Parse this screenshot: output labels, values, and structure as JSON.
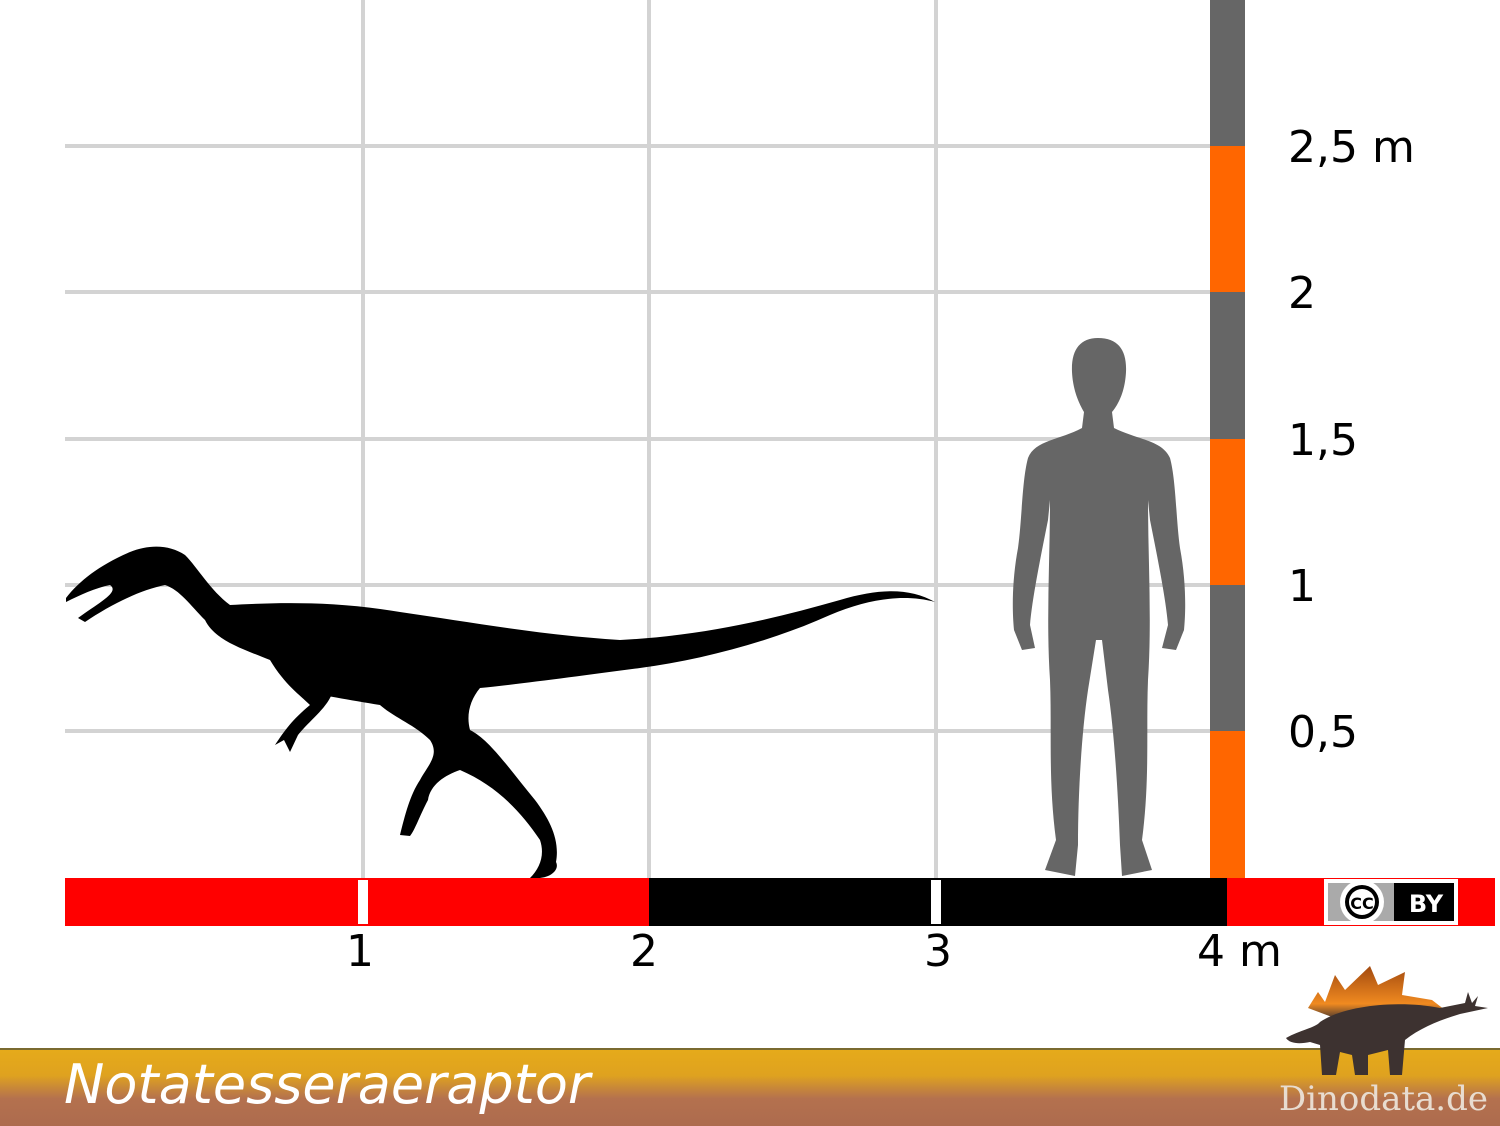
{
  "title": "Notatesseraeraptor",
  "site": "Dinodata.de",
  "license_badge": {
    "cc": "CC",
    "by": "BY"
  },
  "horizontal_scale": {
    "unit": "m",
    "labels": [
      "1",
      "2",
      "3",
      "4 m"
    ],
    "colors": {
      "first_two_m": "#ff0000",
      "next_two_m": "#000000"
    }
  },
  "vertical_scale": {
    "labels": [
      "0,5",
      "1",
      "1,5",
      "2",
      "2,5 m"
    ],
    "colors": {
      "orange": "#ff6600",
      "grey": "#666666"
    }
  },
  "silhouettes": {
    "dinosaur": {
      "color": "#000000",
      "length_m": 3
    },
    "human": {
      "color": "#666666",
      "height_m": 1.8
    }
  },
  "colors": {
    "grid": "#d3d3d3",
    "banner_top": "#e3a91c",
    "banner_bottom": "#b0704f"
  }
}
